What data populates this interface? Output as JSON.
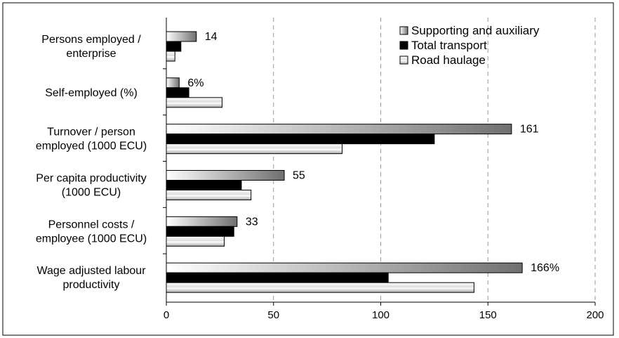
{
  "chart_data": {
    "type": "bar",
    "orientation": "horizontal",
    "categories": [
      [
        "Persons employed /",
        "enterprise"
      ],
      [
        "Self-employed (%)"
      ],
      [
        "Turnover / person",
        "employed (1000 ECU)"
      ],
      [
        "Per capita productivity",
        "(1000 ECU)"
      ],
      [
        "Personnel costs /",
        "employee (1000 ECU)"
      ],
      [
        "Wage adjusted labour",
        "productivity"
      ]
    ],
    "series": [
      {
        "name": "Supporting and auxiliary",
        "values": [
          14,
          6,
          161,
          55,
          33,
          166
        ],
        "fill": "gradient-grey"
      },
      {
        "name": "Total transport",
        "values": [
          6.8,
          10.5,
          125,
          35,
          31.5,
          103.5
        ],
        "fill": "#000000"
      },
      {
        "name": "Road haulage",
        "values": [
          4,
          26,
          82,
          39.5,
          27,
          143.5
        ],
        "fill": "striped-white"
      }
    ],
    "data_labels": [
      "14",
      "6%",
      "161",
      "55",
      "33",
      "166%"
    ],
    "xlim": [
      0,
      200
    ],
    "xticks": [
      "0",
      "50",
      "100",
      "150",
      "200"
    ],
    "grid": "vertical-dashed",
    "legend_position": "top-right",
    "title": "",
    "xlabel": "",
    "ylabel": ""
  }
}
